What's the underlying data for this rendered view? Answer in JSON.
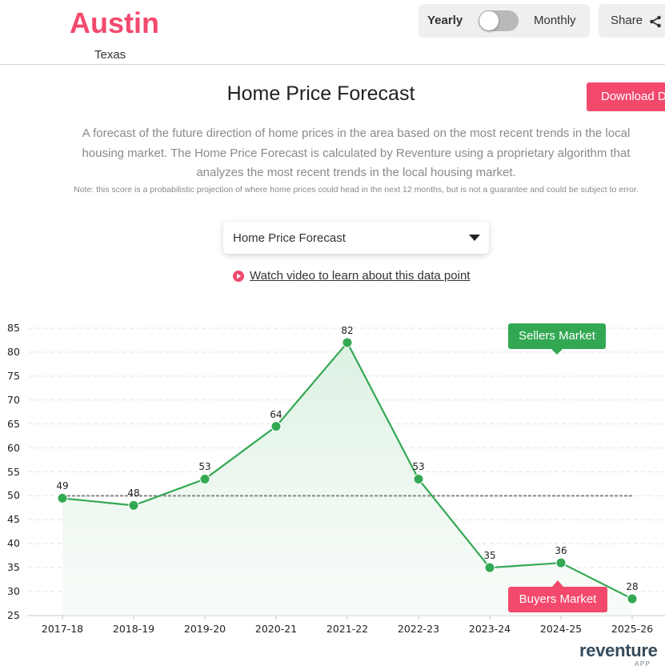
{
  "header": {
    "city": "Austin",
    "state": "Texas",
    "toggle": {
      "left_label": "Yearly",
      "right_label": "Monthly",
      "state": "yearly"
    },
    "share_label": "Share",
    "share_icon": "share-icon"
  },
  "main": {
    "title": "Home Price Forecast",
    "download_label": "Download D",
    "description": "A forecast of the future direction of home prices in the area based on the most recent trends in the local housing market. The Home Price Forecast is calculated by Reventure using a proprietary algorithm that analyzes the most recent trends in the local housing market.",
    "note": "Note: this score is a probabilistic projection of where home prices could head in the next 12 months, but is not a guarantee and could be subject to error.",
    "select": {
      "value": "Home Price Forecast"
    },
    "video_link": "Watch video to learn about this data point"
  },
  "badges": {
    "sellers": "Sellers Market",
    "buyers": "Buyers Market"
  },
  "logo": {
    "name": "reventure",
    "sub": "APP"
  },
  "colors": {
    "accent": "#f2496c",
    "line": "#33a853",
    "reference": "#888888"
  },
  "chart_data": {
    "type": "line",
    "title": "Home Price Forecast",
    "xlabel": "",
    "ylabel": "",
    "categories": [
      "2017-18",
      "2018-19",
      "2019-20",
      "2020-21",
      "2021-22",
      "2022-23",
      "2023-24",
      "2024-25",
      "2025-26"
    ],
    "series": [
      {
        "name": "Home Price Forecast",
        "values": [
          49,
          48,
          53,
          64,
          82,
          53,
          35,
          36,
          28
        ],
        "plotted_values": [
          49.5,
          48,
          53.5,
          64.5,
          82,
          53.5,
          35,
          36,
          28.5
        ]
      }
    ],
    "data_labels": [
      "49",
      "48",
      "53",
      "64",
      "82",
      "53",
      "35",
      "36",
      "28"
    ],
    "reference_line": {
      "value": 50,
      "style": "dashed"
    },
    "yticks": [
      "85",
      "80",
      "75",
      "70",
      "65",
      "60",
      "55",
      "50",
      "45",
      "40",
      "35",
      "30",
      "25"
    ],
    "ylim": [
      25,
      85
    ],
    "grid": true,
    "annotations": [
      "Sellers Market",
      "Buyers Market"
    ],
    "area_fill": true
  }
}
